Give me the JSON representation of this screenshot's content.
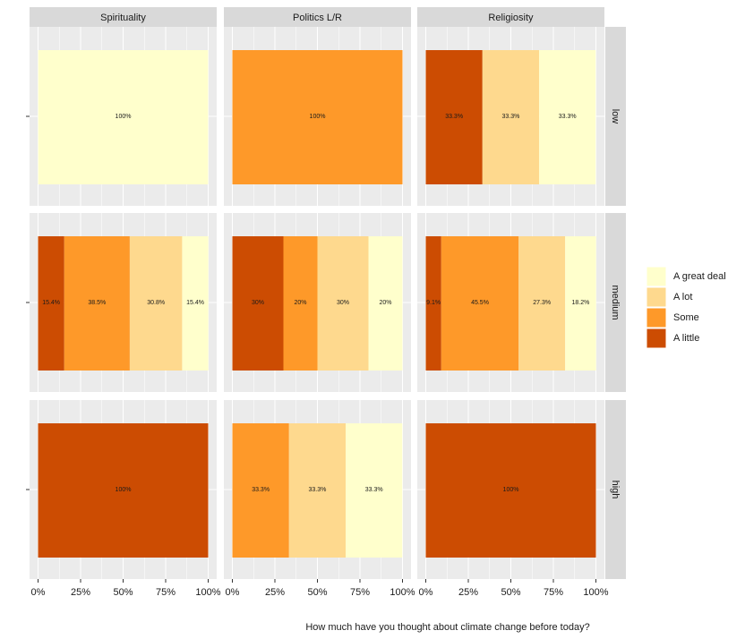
{
  "chart_data": {
    "type": "bar",
    "orientation": "horizontal",
    "stacked": true,
    "columns": [
      "Spirituality",
      "Politics L/R",
      "Religiosity"
    ],
    "rows": [
      "low",
      "medium",
      "high"
    ],
    "x_label": "How much have you thought about climate change before today?",
    "xlim": [
      -5,
      105
    ],
    "xticks": [
      {
        "value": 0,
        "label": "0%"
      },
      {
        "value": 25,
        "label": "25%"
      },
      {
        "value": 50,
        "label": "50%"
      },
      {
        "value": 75,
        "label": "75%"
      },
      {
        "value": 100,
        "label": "100%"
      }
    ],
    "grid": true,
    "legend": "right",
    "series": [
      {
        "name": "A little",
        "color": "#cc4c02",
        "values": [
          null,
          null,
          33.3,
          15.4,
          30,
          9.1,
          100,
          null,
          100
        ],
        "value_labels": [
          null,
          null,
          "33.3%",
          "15.4%",
          "30%",
          "9.1%",
          "100%",
          null,
          "100%"
        ]
      },
      {
        "name": "Some",
        "color": "#fe9929",
        "values": [
          null,
          100,
          null,
          38.5,
          20,
          45.5,
          null,
          33.3,
          null
        ],
        "value_labels": [
          null,
          "100%",
          null,
          "38.5%",
          "20%",
          "45.5%",
          null,
          "33.3%",
          null
        ]
      },
      {
        "name": "A lot",
        "color": "#fed98e",
        "values": [
          null,
          null,
          33.3,
          30.8,
          30,
          27.3,
          null,
          33.3,
          null
        ],
        "value_labels": [
          null,
          null,
          "33.3%",
          "30.8%",
          "30%",
          "27.3%",
          null,
          "33.3%",
          null
        ]
      },
      {
        "name": "A great deal",
        "color": "#ffffcc",
        "values": [
          100,
          null,
          33.3,
          15.4,
          20,
          18.2,
          null,
          33.3,
          null
        ],
        "value_labels": [
          "100%",
          null,
          "33.3%",
          "15.4%",
          "20%",
          "18.2%",
          null,
          "33.3%",
          null
        ]
      }
    ]
  }
}
